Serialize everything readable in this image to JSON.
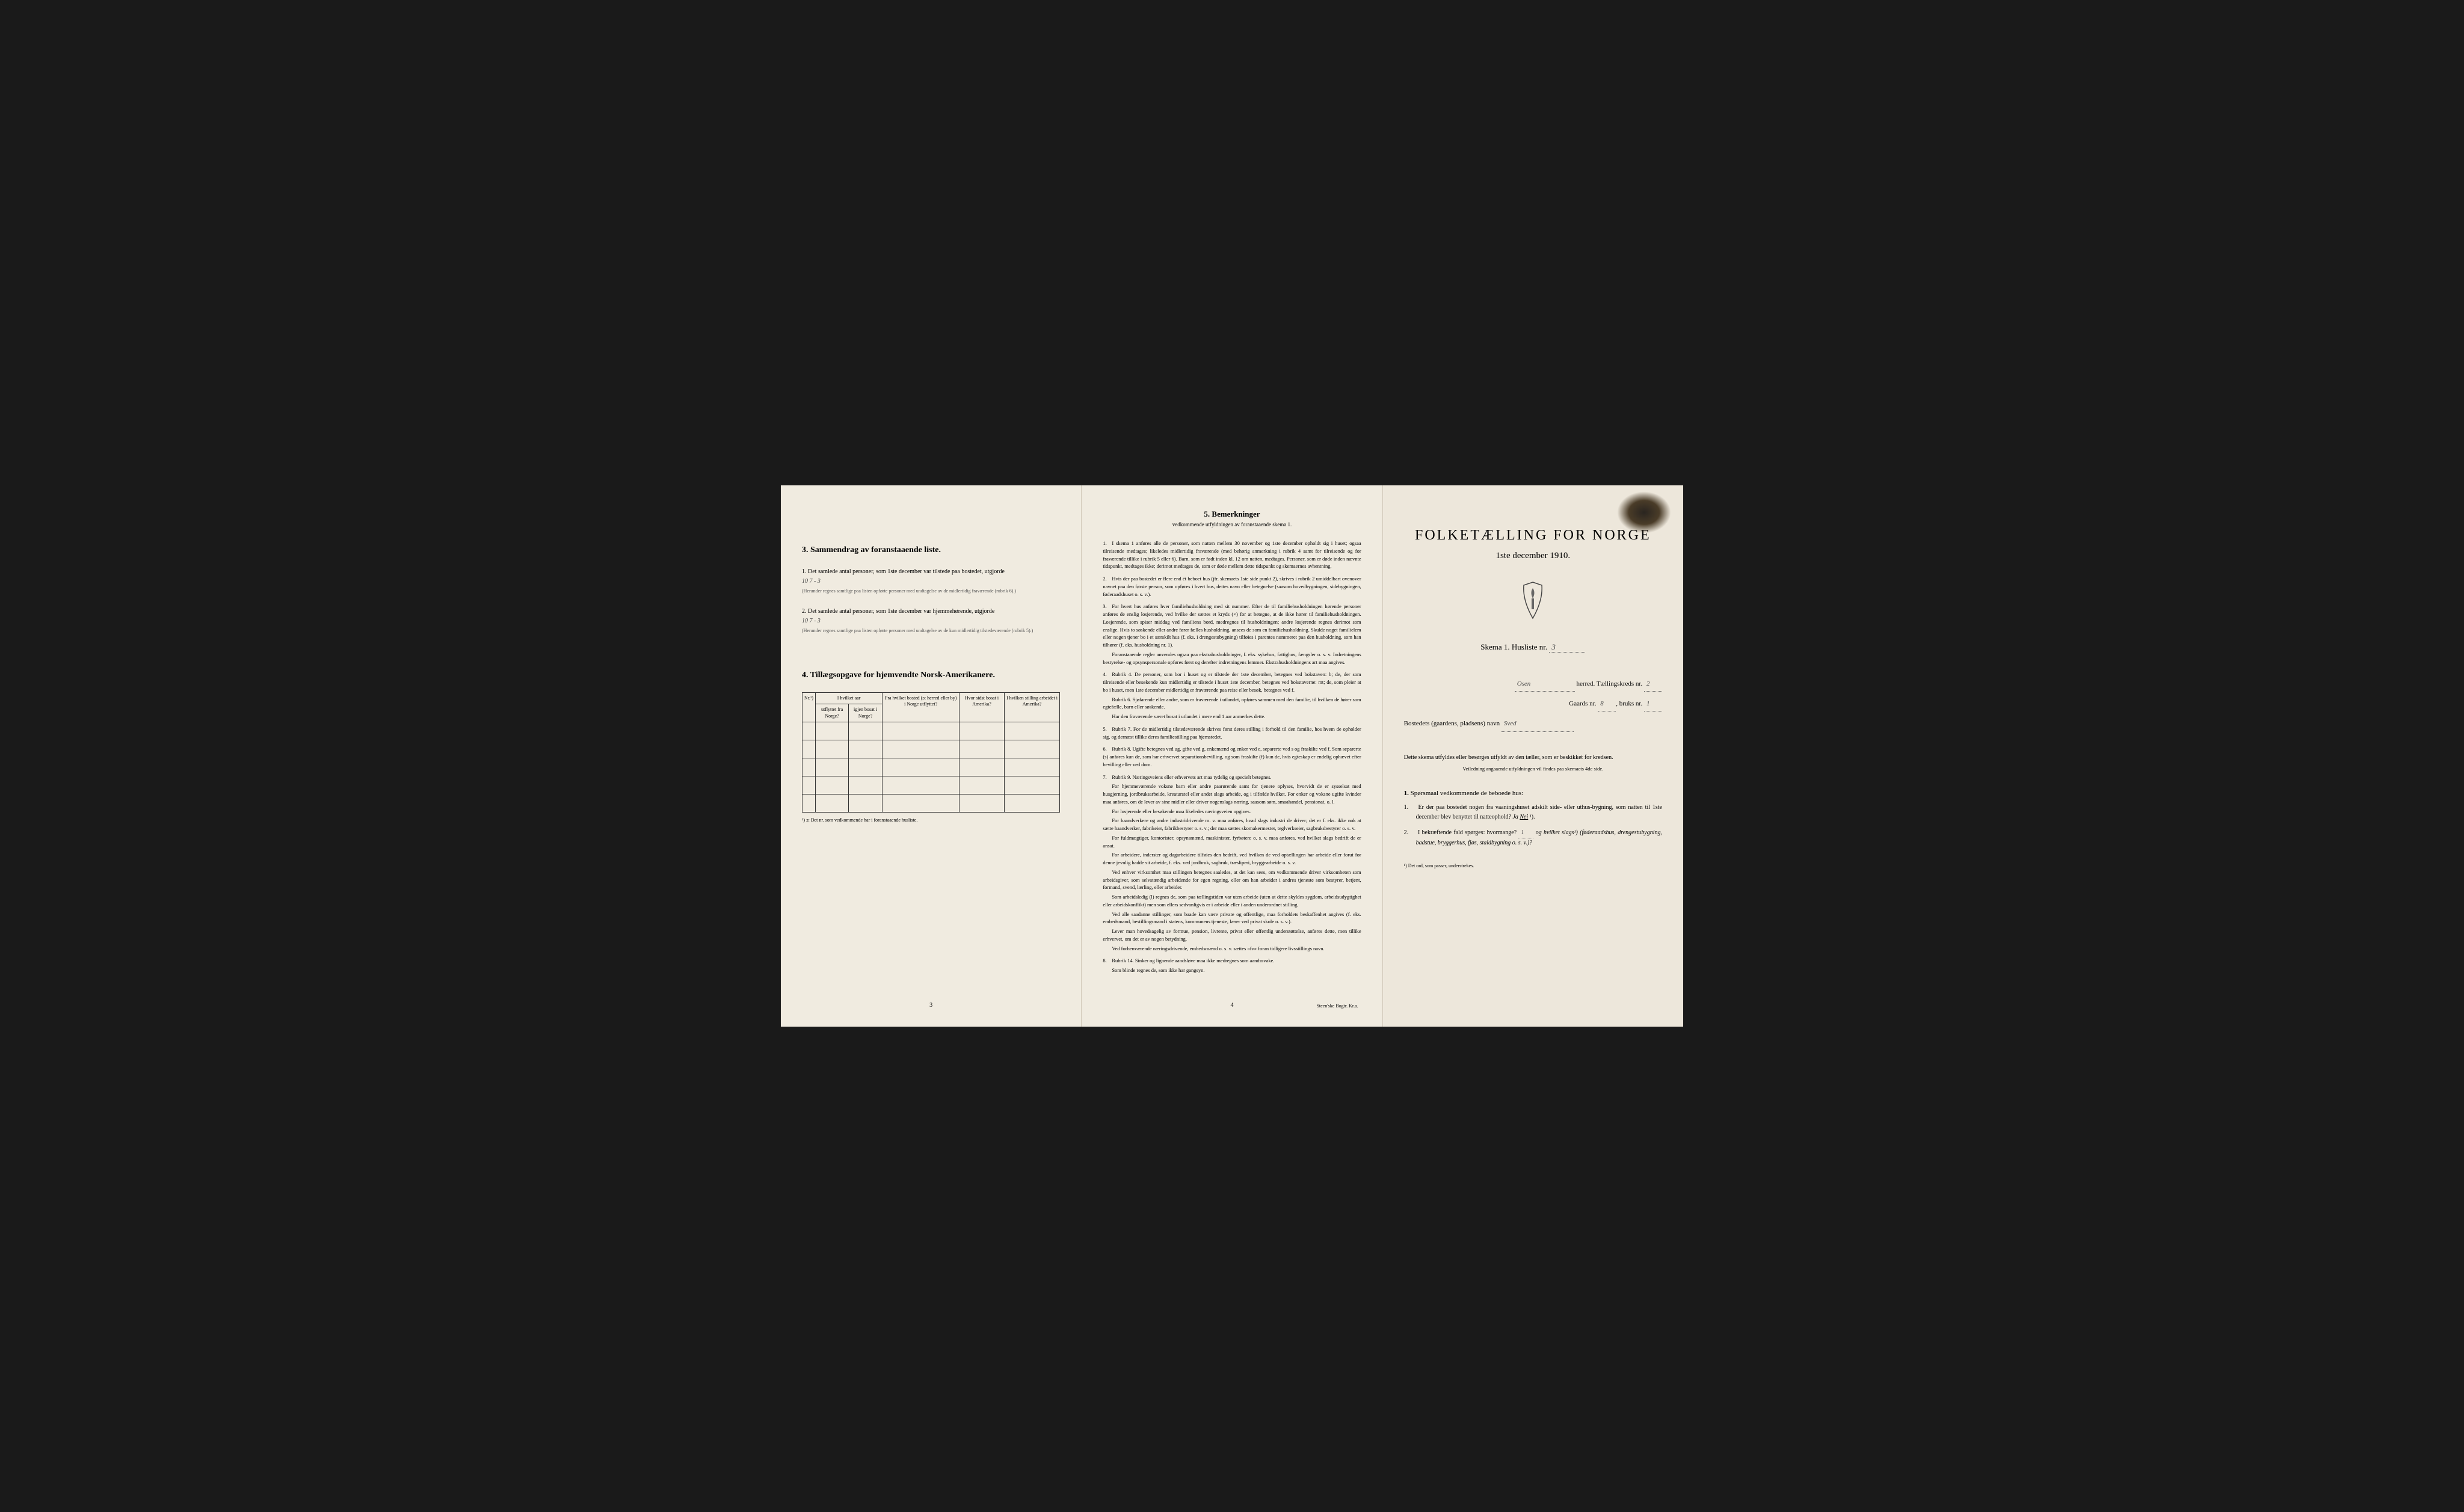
{
  "colors": {
    "page_bg": "#f0ebe0",
    "cover_bg": "#ede7db",
    "background": "#1a1a1a",
    "text": "#222222",
    "fine_text": "#555555",
    "border": "#333333"
  },
  "typography": {
    "body_font": "Georgia, Times New Roman, serif",
    "title_fontsize": 24,
    "heading_fontsize": 14,
    "body_fontsize": 10,
    "fine_fontsize": 8
  },
  "page3": {
    "section3_num": "3.",
    "section3_title": "Sammendrag av foranstaaende liste.",
    "item1_num": "1.",
    "item1_text": "Det samlede antal personer, som 1ste december var tilstede paa bostedet, utgjorde",
    "item1_value": "10  7 - 3",
    "item1_note": "(Herunder regnes samtlige paa listen opførte personer med undtagelse av de midlertidig fraværende (rubrik 6).)",
    "item2_num": "2.",
    "item2_text": "Det samlede antal personer, som 1ste december var hjemmehørende, utgjorde",
    "item2_value": "10  7 - 3",
    "item2_note": "(Herunder regnes samtlige paa listen opførte personer med undtagelse av de kun midlertidig tilstedeværende (rubrik 5).)",
    "section4_num": "4.",
    "section4_title": "Tillægsopgave for hjemvendte Norsk-Amerikanere.",
    "table": {
      "col1": "Nr.¹)",
      "col2_top": "I hvilket aar",
      "col2a": "utflyttet fra Norge?",
      "col2b": "igjen bosat i Norge?",
      "col3": "Fra hvilket bosted (ɔ: herred eller by) i Norge utflyttet?",
      "col4": "Hvor sidst bosat i Amerika?",
      "col5": "I hvilken stilling arbeidet i Amerika?",
      "empty_rows": 5
    },
    "table_footnote": "¹) ɔ: Det nr. som vedkommende har i foranstaaende husliste.",
    "page_num": "3"
  },
  "page4": {
    "heading_num": "5.",
    "heading": "Bemerkninger",
    "subheading": "vedkommende utfyldningen av foranstaaende skema 1.",
    "remarks": [
      {
        "num": "1.",
        "text": "I skema 1 anføres alle de personer, som natten mellem 30 november og 1ste december opholdt sig i huset; ogsaa tilreisende medtages; likeledes midlertidig fraværende (med behørig anmerkning i rubrik 4 samt for tilreisende og for fraværende tillike i rubrik 5 eller 6). Barn, som er født inden kl. 12 om natten, medtages. Personer, som er døde inden nævnte tidspunkt, medtages ikke; derimot medtages de, som er døde mellem dette tidspunkt og skemaernes avhentning."
      },
      {
        "num": "2.",
        "text": "Hvis der paa bostedet er flere end ét beboet hus (jfr. skemaets 1ste side punkt 2), skrives i rubrik 2 umiddelbart ovenover navnet paa den første person, som opføres i hvert hus, dettes navn eller betegnelse (saasom hovedbygningen, sidebygningen, føderaadshuset o. s. v.)."
      },
      {
        "num": "3.",
        "text": "For hvert hus anføres hver familiehusholdning med sit nummer. Efter de til familiehusholdningen hørende personer anføres de enslig losjerende, ved hvilke der sættes et kryds (×) for at betegne, at de ikke hører til familiehusholdningen. Losjerende, som spiser middag ved familiens bord, medregnes til husholdningen; andre losjerende regnes derimot som enslige. Hvis to søskende eller andre fører fælles husholdning, ansees de som en familiehusholdning. Skulde noget familielem eller nogen tjener bo i et særskilt hus (f. eks. i drengestubygning) tilføies i parentes nummeret paa den husholdning, som han tilhører (f. eks. husholdning nr. 1).",
        "extra": [
          "Foranstaaende regler anvendes ogsaa paa ekstrahusholdninger, f. eks. sykehus, fattighus, fængsler o. s. v. Indretningens bestyrelse- og opsynspersonale opføres først og derefter indretningens lemmer. Ekstrahusholdningens art maa angives."
        ]
      },
      {
        "num": "4.",
        "text": "Rubrik 4. De personer, som bor i huset og er tilstede der 1ste december, betegnes ved bokstaven: b; de, der som tilreisende eller besøkende kun midlertidig er tilstede i huset 1ste december, betegnes ved bokstaverne: mt; de, som pleier at bo i huset, men 1ste december midlertidig er fraværende paa reise eller besøk, betegnes ved f.",
        "extra": [
          "Rubrik 6. Sjøfarende eller andre, som er fraværende i utlandet, opføres sammen med den familie, til hvilken de hører som egtefælle, barn eller søskende.",
          "Har den fraværende været bosat i utlandet i mere end 1 aar anmerkes dette."
        ]
      },
      {
        "num": "5.",
        "text": "Rubrik 7. For de midlertidig tilstedeværende skrives først deres stilling i forhold til den familie, hos hvem de opholder sig, og dernæst tillike deres familiestilling paa hjemstedet."
      },
      {
        "num": "6.",
        "text": "Rubrik 8. Ugifte betegnes ved ug, gifte ved g, enkemænd og enker ved e, separerte ved s og fraskilte ved f. Som separerte (s) anføres kun de, som har erhvervet separationsbevilling, og som fraskilte (f) kun de, hvis egteskap er endelig ophævet efter bevilling eller ved dom."
      },
      {
        "num": "7.",
        "text": "Rubrik 9. Næringsveiens eller erhvervets art maa tydelig og specielt betegnes.",
        "extra": [
          "For hjemmeværende voksne barn eller andre paarørende samt for tjenere oplyses, hvorvidt de er sysselsat med husgjerning, jordbruksarbeide, kreaturstel eller andet slags arbeide, og i tilfælde hvilket. For enker og voksne ugifte kvinder maa anføres, om de lever av sine midler eller driver nogenslags næring, saasom søm, smaahandel, pensionat, o. l.",
          "For losjerende eller besøkende maa likeledes næringsveien opgives.",
          "For haandverkere og andre industridrivende m. v. maa anføres, hvad slags industri de driver; det er f. eks. ikke nok at sætte haandverker, fabrikeier, fabrikbestyrer o. s. v.; der maa sættes skomakermester, teglverkseier, sagbruksbestyrer o. s. v.",
          "For fuldmægtiger, kontorister, opsynsmænd, maskinister, fyrbøtere o. s. v. maa anføres, ved hvilket slags bedrift de er ansat.",
          "For arbeidere, inderster og dagarbeidere tilføies den bedrift, ved hvilken de ved optællingen har arbeide eller forut for denne jevnlig hadde sit arbeide, f. eks. ved jordbruk, sagbruk, træsliperi, bryggearbeide o. s. v.",
          "Ved enhver virksomhet maa stillingen betegnes saaledes, at det kan sees, om vedkommende driver virksomheten som arbeidsgiver, som selvstændig arbeidende for egen regning, eller om han arbeider i andres tjeneste som bestyrer, betjent, formand, svend, lærling, eller arbeider.",
          "Som arbeidsledig (l) regnes de, som paa tællingstiden var uten arbeide (uten at dette skyldes sygdom, arbeidsudygtighet eller arbeidskonflikt) men som ellers sedvanligvis er i arbeide eller i anden underordnet stilling.",
          "Ved alle saadanne stillinger, som baade kan være private og offentlige, maa forholdets beskaffenhet angives (f. eks. embedsmand, bestillingsmand i statens, kommunens tjeneste, lærer ved privat skole o. s. v.).",
          "Lever man hovedsagelig av formue, pension, livrente, privat eller offentlig understøttelse, anføres dette, men tillike erhvervet, om det er av nogen betydning.",
          "Ved forhenværende næringsdrivende, embedsmænd o. s. v. sættes «fv» foran tidligere livsstillings navn."
        ]
      },
      {
        "num": "8.",
        "text": "Rubrik 14. Sinker og lignende aandsløve maa ikke medregnes som aandssvake.",
        "extra": [
          "Som blinde regnes de, som ikke har gangsyn."
        ]
      }
    ],
    "page_num": "4",
    "printer": "Steen'ske Bogtr. Kr.a."
  },
  "cover": {
    "title": "FOLKETÆLLING FOR NORGE",
    "date": "1ste december 1910.",
    "skema_label": "Skema 1.  Husliste nr.",
    "skema_value": "3",
    "herred_value": "Osen",
    "herred_label": "herred.",
    "kreds_label": "Tællingskreds nr.",
    "kreds_value": "2",
    "gaard_label": "Gaards nr.",
    "gaard_value": "8",
    "bruk_label": "bruks nr.",
    "bruk_value": "1",
    "bosted_label": "Bostedets (gaardens, pladsens) navn",
    "bosted_value": "Sved",
    "instruction": "Dette skema utfyldes eller besørges utfyldt av den tæller, som er beskikket for kredsen.",
    "instruction_sub": "Veiledning angaaende utfyldningen vil findes paa skemaets 4de side.",
    "section1_num": "1.",
    "section1_heading": "Spørsmaal vedkommende de beboede hus:",
    "q1_num": "1.",
    "q1_text": "Er der paa bostedet nogen fra vaaningshuset adskilt side- eller uthus-bygning, som natten til 1ste december blev benyttet til natteophold?",
    "q1_answer_ja": "Ja",
    "q1_answer_nei": "Nei",
    "q1_sup": "¹).",
    "q2_num": "2.",
    "q2_text": "I bekræftende fald spørges: hvormange?",
    "q2_value": "1",
    "q2_text2": "og hvilket slags¹) (føderaadshus, drengestubygning, badstue, bryggerhus, fjøs, staldbygning o. s. v.)?",
    "footnote": "¹) Det ord, som passer, understrekes."
  }
}
